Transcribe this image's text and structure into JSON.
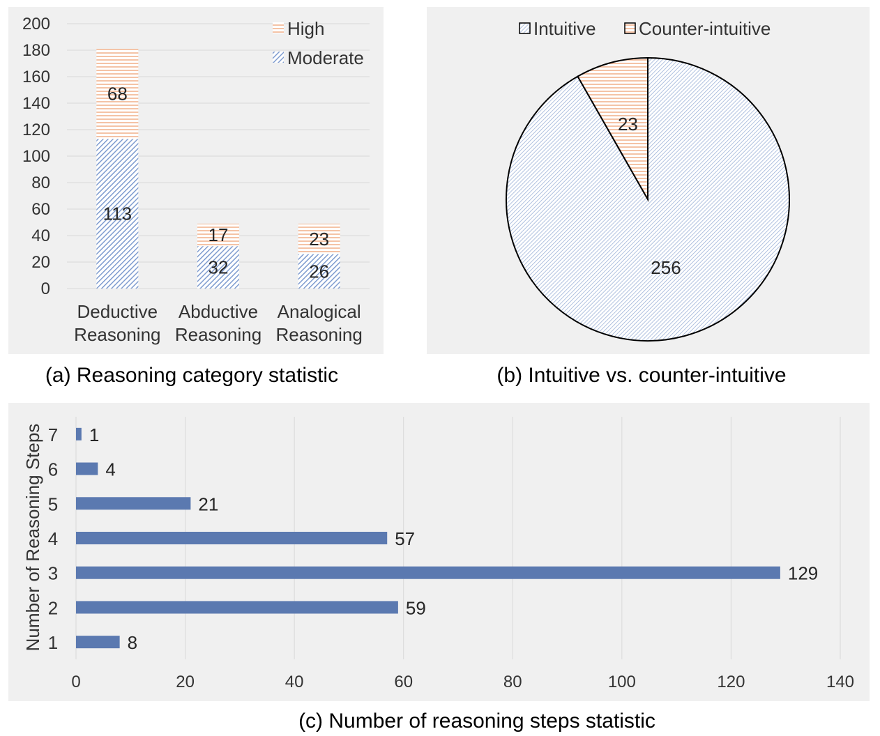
{
  "colors": {
    "panel_bg": "#f0f0f0",
    "grid": "#d9d9d9",
    "blue": "#5b79b0",
    "blue_hatch": "#8aa4d2",
    "orange_hatch": "#f2b48f"
  },
  "chart_data": [
    {
      "type": "bar",
      "stacked": true,
      "caption": "(a) Reasoning category statistic",
      "categories": [
        [
          "Deductive",
          "Reasoning"
        ],
        [
          "Abductive",
          "Reasoning"
        ],
        [
          "Analogical",
          "Reasoning"
        ]
      ],
      "series": [
        {
          "name": "Moderate",
          "values": [
            113,
            32,
            26
          ],
          "pattern": "diagonal-hatch",
          "color": "#8aa4d2"
        },
        {
          "name": "High",
          "values": [
            68,
            17,
            23
          ],
          "pattern": "horizontal-stripes",
          "color": "#f2b48f"
        }
      ],
      "legend_order": [
        "High",
        "Moderate"
      ],
      "legend_position": "top-right",
      "ylim": [
        0,
        200
      ],
      "yticks": [
        "0",
        "20",
        "40",
        "60",
        "80",
        "100",
        "120",
        "140",
        "160",
        "180",
        "200"
      ],
      "grid": true
    },
    {
      "type": "pie",
      "caption": "(b) Intuitive vs. counter-intuitive",
      "slices": [
        {
          "name": "Intuitive",
          "value": 256,
          "pattern": "diagonal-hatch",
          "color": "#8aa4d2"
        },
        {
          "name": "Counter-intuitive",
          "value": 23,
          "pattern": "horizontal-stripes",
          "color": "#f2b48f"
        }
      ],
      "legend_position": "top"
    },
    {
      "type": "bar",
      "orientation": "horizontal",
      "caption": "(c) Number of reasoning steps statistic",
      "ylabel": "Number of Reasoning Steps",
      "categories": [
        "1",
        "2",
        "3",
        "4",
        "5",
        "6",
        "7"
      ],
      "values": [
        8,
        59,
        129,
        57,
        21,
        4,
        1
      ],
      "xlim": [
        0,
        140
      ],
      "xticks": [
        "0",
        "20",
        "40",
        "60",
        "80",
        "100",
        "120",
        "140"
      ],
      "color": "#5b79b0",
      "grid": true
    }
  ]
}
